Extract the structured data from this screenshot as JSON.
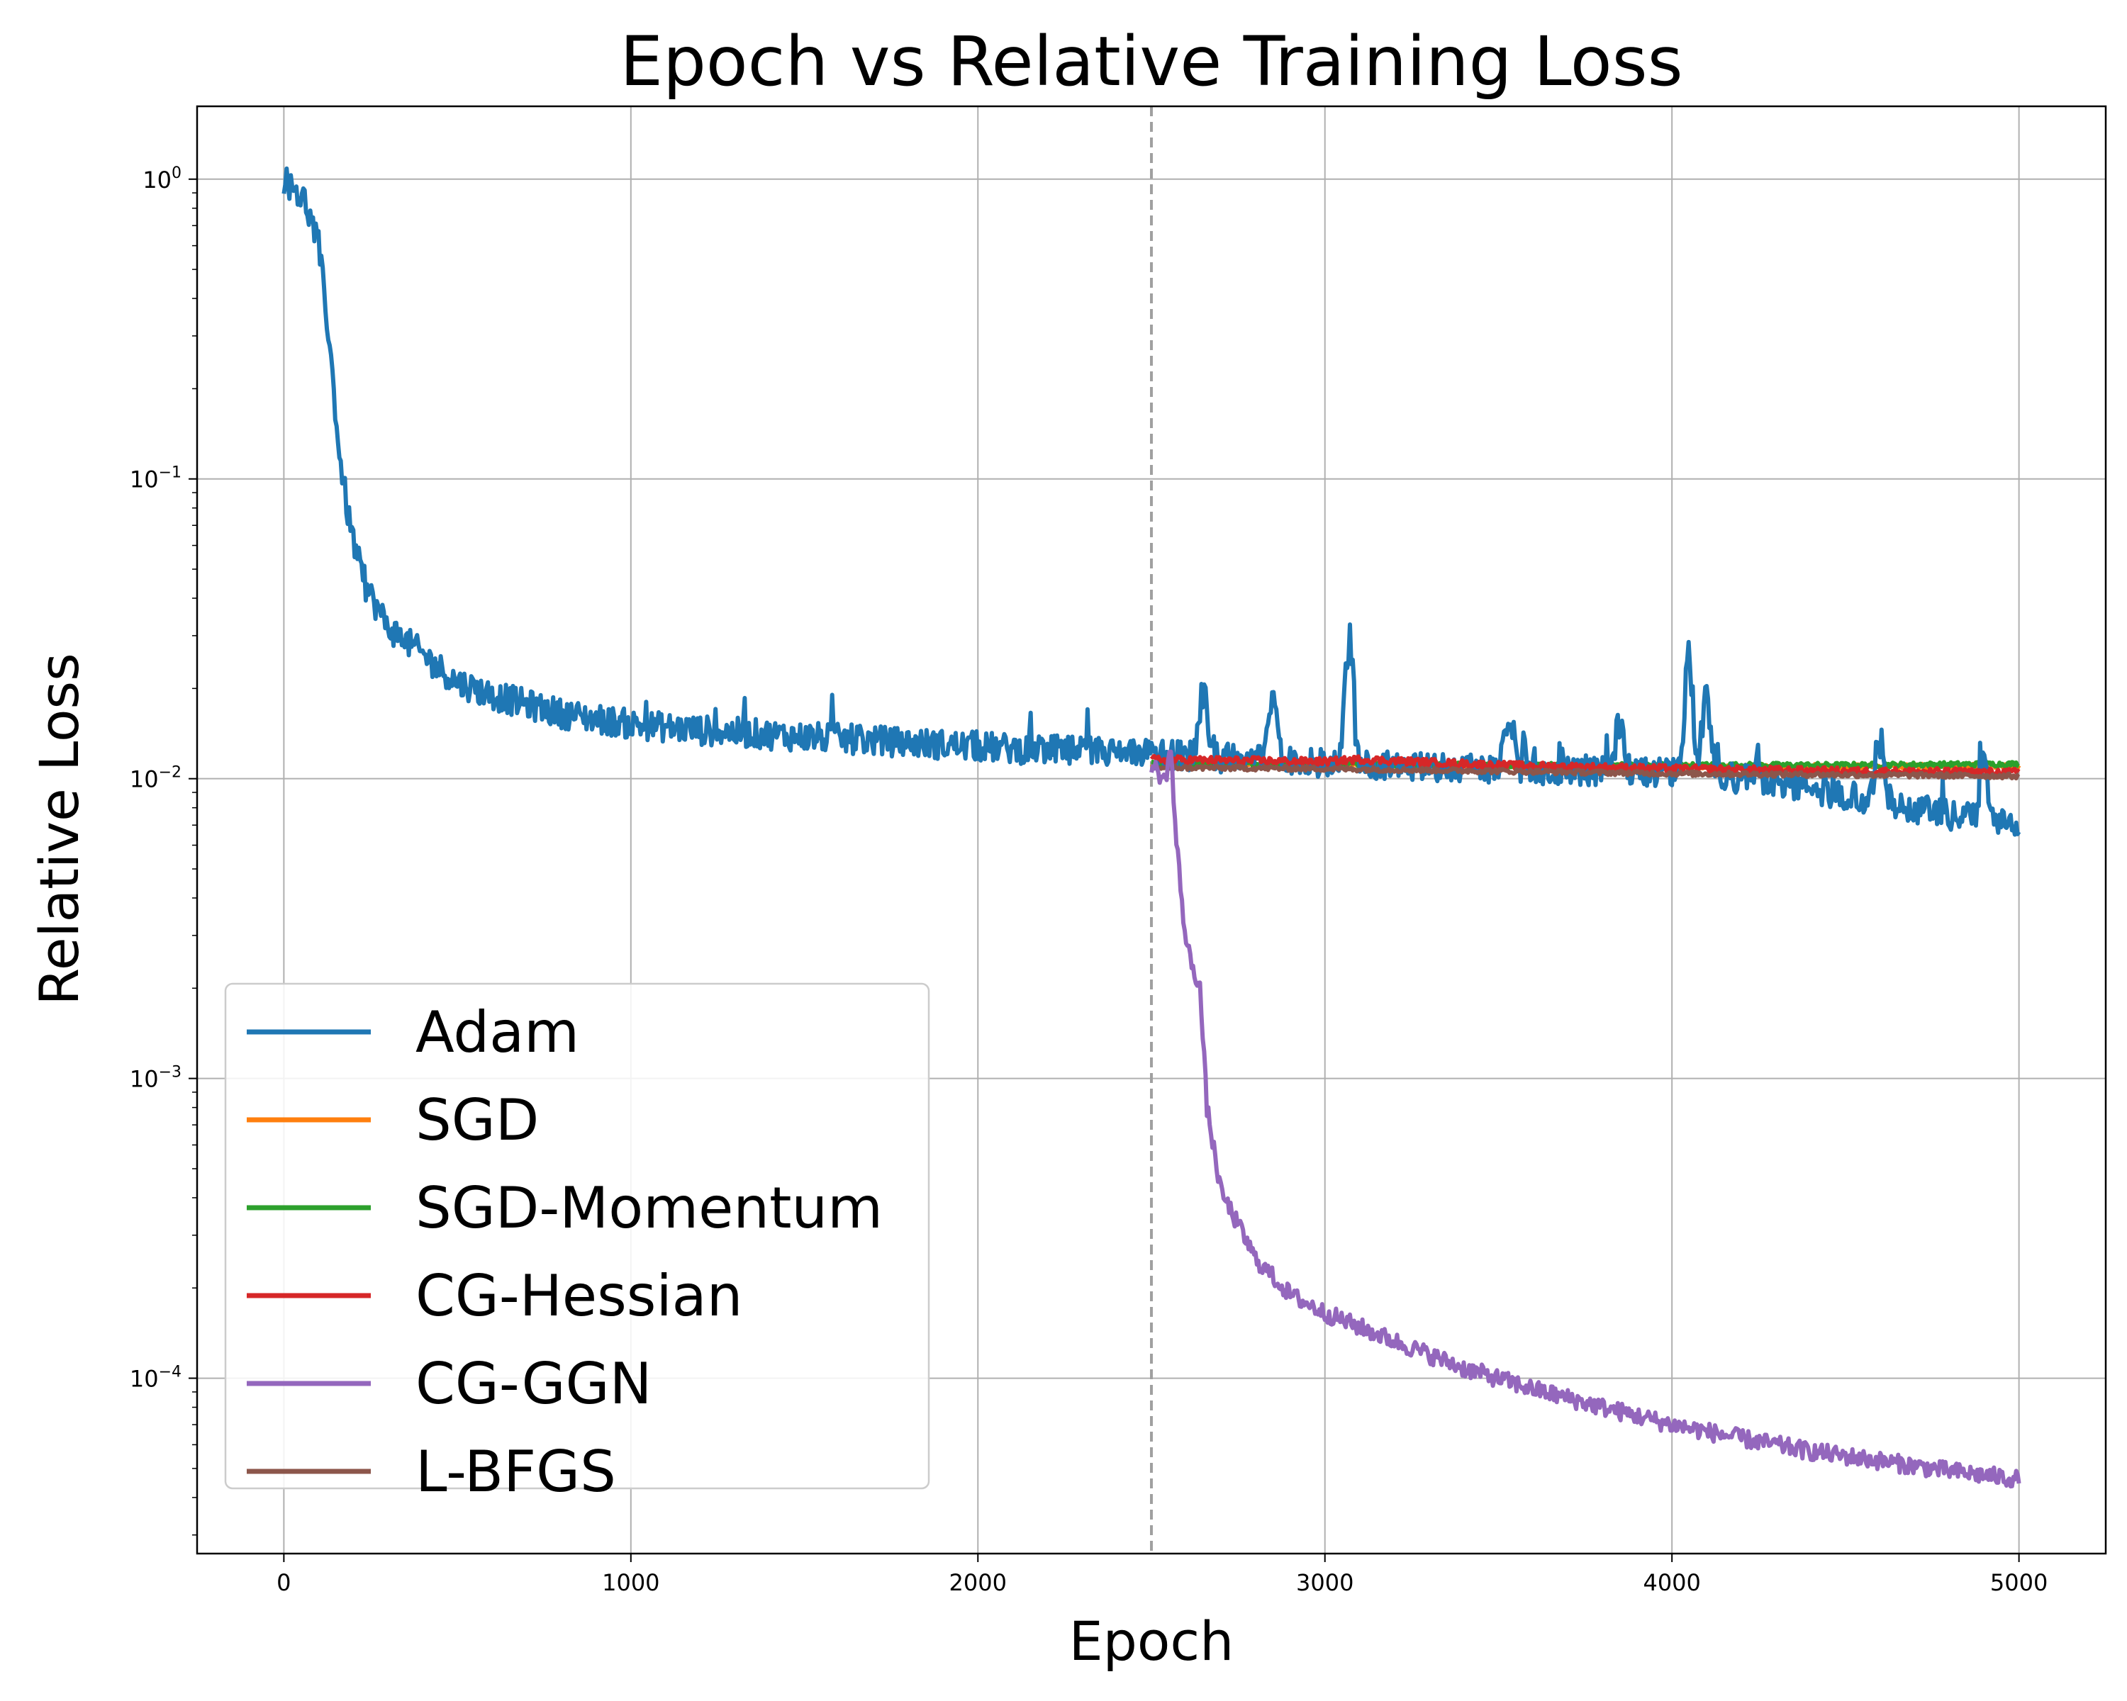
{
  "chart_data": {
    "type": "line",
    "title": "Epoch vs Relative Training Loss",
    "xlabel": "Epoch",
    "ylabel": "Relative Loss",
    "yscale": "log",
    "xlim": [
      -250,
      5250
    ],
    "ylim": [
      2.6e-05,
      1.75
    ],
    "xticks": [
      0,
      1000,
      2000,
      3000,
      4000,
      5000
    ],
    "xtick_labels": [
      "0",
      "1000",
      "2000",
      "3000",
      "4000",
      "5000"
    ],
    "yticks": [
      1,
      0.1,
      0.01,
      0.001,
      0.0001
    ],
    "ytick_labels": [
      {
        "base": "10",
        "exp": "0"
      },
      {
        "base": "10",
        "exp": "−1"
      },
      {
        "base": "10",
        "exp": "−2"
      },
      {
        "base": "10",
        "exp": "−3"
      },
      {
        "base": "10",
        "exp": "−4"
      }
    ],
    "grid": true,
    "vline": {
      "x": 2500,
      "color": "#a0a0a0",
      "style": "dashed"
    },
    "legend_position": "lower-left",
    "series": [
      {
        "name": "Adam",
        "color": "#1f77b4",
        "points": [
          [
            0,
            1.0
          ],
          [
            60,
            0.85
          ],
          [
            100,
            0.6
          ],
          [
            130,
            0.3
          ],
          [
            160,
            0.12
          ],
          [
            190,
            0.07
          ],
          [
            230,
            0.045
          ],
          [
            300,
            0.032
          ],
          [
            400,
            0.026
          ],
          [
            500,
            0.021
          ],
          [
            600,
            0.019
          ],
          [
            800,
            0.0165
          ],
          [
            1000,
            0.0152
          ],
          [
            1200,
            0.0145
          ],
          [
            1500,
            0.0138
          ],
          [
            1800,
            0.0132
          ],
          [
            2100,
            0.0126
          ],
          [
            2400,
            0.0122
          ],
          [
            2500,
            0.0121
          ],
          [
            2800,
            0.0116
          ],
          [
            3100,
            0.0111
          ],
          [
            3400,
            0.0109
          ],
          [
            3700,
            0.0107
          ],
          [
            4000,
            0.0105
          ],
          [
            4300,
            0.0098
          ],
          [
            4500,
            0.0088
          ],
          [
            4700,
            0.0079
          ],
          [
            4850,
            0.0074
          ],
          [
            5000,
            0.007
          ]
        ],
        "spikes": [
          [
            2650,
            0.021
          ],
          [
            2850,
            0.023
          ],
          [
            3070,
            0.033
          ],
          [
            3530,
            0.019
          ],
          [
            3850,
            0.016
          ],
          [
            4050,
            0.029
          ],
          [
            4100,
            0.025
          ],
          [
            4600,
            0.016
          ],
          [
            4900,
            0.013
          ]
        ]
      },
      {
        "name": "SGD",
        "color": "#ff7f0e",
        "points": [
          [
            2500,
            0.0111
          ],
          [
            3000,
            0.0111
          ],
          [
            3500,
            0.011
          ],
          [
            4000,
            0.011
          ],
          [
            4500,
            0.011
          ],
          [
            5000,
            0.011
          ]
        ]
      },
      {
        "name": "SGD-Momentum",
        "color": "#2ca02c",
        "points": [
          [
            2500,
            0.0112
          ],
          [
            3000,
            0.0112
          ],
          [
            3500,
            0.0111
          ],
          [
            4000,
            0.0111
          ],
          [
            4500,
            0.0111
          ],
          [
            5000,
            0.0112
          ]
        ]
      },
      {
        "name": "CG-Hessian",
        "color": "#d62728",
        "points": [
          [
            2500,
            0.0116
          ],
          [
            3000,
            0.0114
          ],
          [
            3100,
            0.0116
          ],
          [
            3500,
            0.0111
          ],
          [
            4000,
            0.0108
          ],
          [
            4500,
            0.0106
          ],
          [
            5000,
            0.0105
          ]
        ]
      },
      {
        "name": "CG-GGN",
        "color": "#9467bd",
        "points": [
          [
            2500,
            0.0112
          ],
          [
            2540,
            0.0098
          ],
          [
            2555,
            0.013
          ],
          [
            2570,
            0.0065
          ],
          [
            2600,
            0.0028
          ],
          [
            2640,
            0.002
          ],
          [
            2660,
            0.0008
          ],
          [
            2700,
            0.00042
          ],
          [
            2800,
            0.00025
          ],
          [
            2900,
            0.00019
          ],
          [
            3000,
            0.000165
          ],
          [
            3200,
            0.000133
          ],
          [
            3400,
            0.000108
          ],
          [
            3600,
            9.2e-05
          ],
          [
            3800,
            8e-05
          ],
          [
            4000,
            7e-05
          ],
          [
            4200,
            6.3e-05
          ],
          [
            4400,
            5.7e-05
          ],
          [
            4600,
            5.3e-05
          ],
          [
            4800,
            4.9e-05
          ],
          [
            5000,
            4.6e-05
          ]
        ]
      },
      {
        "name": "L-BFGS",
        "color": "#8c564b",
        "points": [
          [
            2500,
            0.0109
          ],
          [
            3000,
            0.0108
          ],
          [
            3500,
            0.0106
          ],
          [
            4000,
            0.0104
          ],
          [
            4500,
            0.0103
          ],
          [
            5000,
            0.0102
          ]
        ]
      }
    ]
  }
}
